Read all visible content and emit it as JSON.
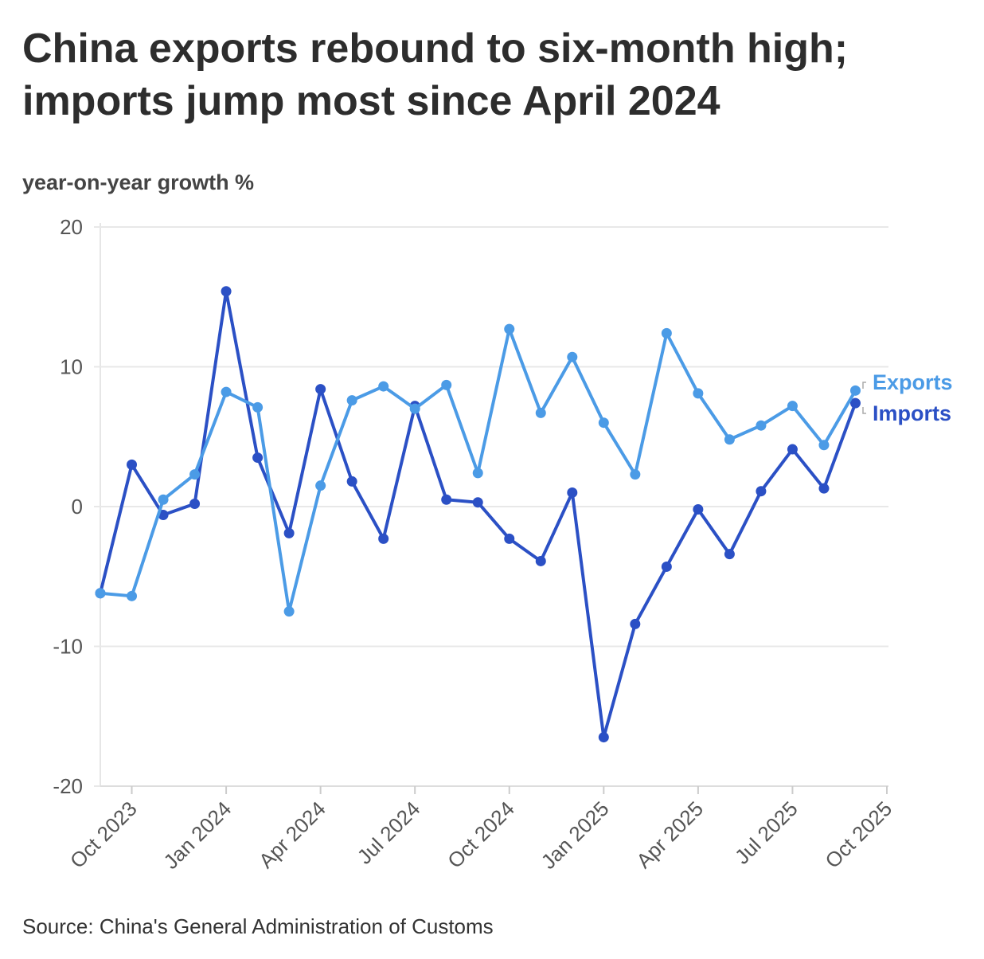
{
  "chart_data": {
    "type": "line",
    "title": "China exports rebound to six-month high; imports jump most since April 2024",
    "ylabel": "year-on-year growth %",
    "source": "Source: China's General Administration of Customs",
    "ylim": [
      -20,
      20
    ],
    "yticks": [
      20,
      10,
      0,
      -10,
      -20
    ],
    "xlim": [
      "2023-09",
      "2025-10"
    ],
    "xticks": [
      {
        "date": "2023-10",
        "label": "Oct 2023"
      },
      {
        "date": "2024-01",
        "label": "Jan 2024"
      },
      {
        "date": "2024-04",
        "label": "Apr 2024"
      },
      {
        "date": "2024-07",
        "label": "Jul 2024"
      },
      {
        "date": "2024-10",
        "label": "Oct 2024"
      },
      {
        "date": "2025-01",
        "label": "Jan 2025"
      },
      {
        "date": "2025-04",
        "label": "Apr 2025"
      },
      {
        "date": "2025-07",
        "label": "Jul 2025"
      },
      {
        "date": "2025-10",
        "label": "Oct 2025"
      }
    ],
    "grid": true,
    "x": [
      "2023-09",
      "2023-10",
      "2023-11",
      "2023-12",
      "2024-01",
      "2024-02",
      "2024-03",
      "2024-04",
      "2024-05",
      "2024-06",
      "2024-07",
      "2024-08",
      "2024-09",
      "2024-10",
      "2024-11",
      "2024-12",
      "2025-01",
      "2025-02",
      "2025-03",
      "2025-04",
      "2025-05",
      "2025-06",
      "2025-07",
      "2025-08",
      "2025-09"
    ],
    "series": [
      {
        "name": "Exports",
        "color": "#4b9be6",
        "values": [
          -6.2,
          -6.4,
          0.5,
          2.3,
          8.2,
          7.1,
          -7.5,
          1.5,
          7.6,
          8.6,
          7.0,
          8.7,
          2.4,
          12.7,
          6.7,
          10.7,
          6.0,
          2.3,
          12.4,
          8.1,
          4.8,
          5.8,
          7.2,
          4.4,
          8.3
        ]
      },
      {
        "name": "Imports",
        "color": "#2b50c5",
        "values": [
          -6.2,
          3.0,
          -0.6,
          0.2,
          15.4,
          3.5,
          -1.9,
          8.4,
          1.8,
          -2.3,
          7.2,
          0.5,
          0.3,
          -2.3,
          -3.9,
          1.0,
          -16.5,
          -8.4,
          -4.3,
          -0.2,
          -3.4,
          1.1,
          4.1,
          1.3,
          7.4
        ]
      }
    ]
  }
}
